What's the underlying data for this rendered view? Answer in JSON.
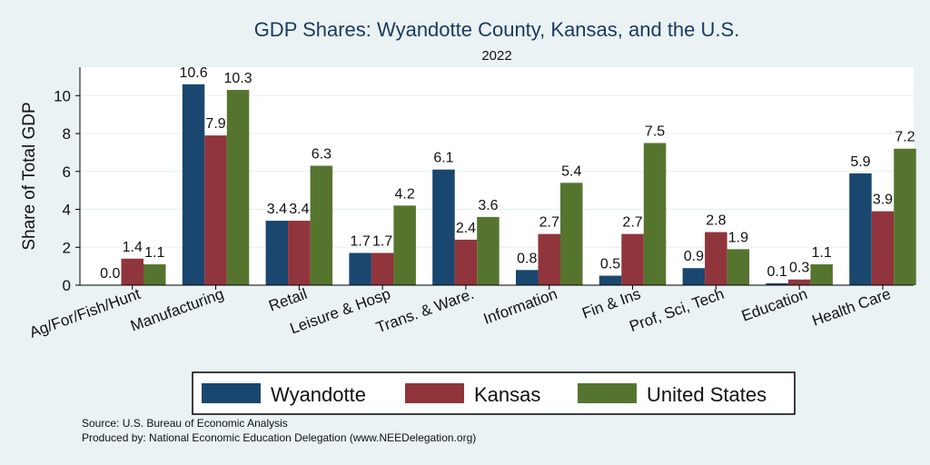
{
  "chart_data": {
    "type": "bar",
    "title": "GDP Shares: Wyandotte County, Kansas, and the U.S.",
    "subtitle": "2022",
    "ylabel": "Share of Total GDP",
    "xlabel": "",
    "ylim": [
      0,
      11.5
    ],
    "yticks": [
      0,
      2,
      4,
      6,
      8,
      10
    ],
    "grid": true,
    "legend_position": "bottom",
    "categories": [
      "Ag/For/Fish/Hunt",
      "Manufacturing",
      "Retail",
      "Leisure & Hosp",
      "Trans. & Ware.",
      "Information",
      "Fin & Ins",
      "Prof, Sci, Tech",
      "Education",
      "Health Care"
    ],
    "series": [
      {
        "name": "Wyandotte",
        "color": "#1a476f",
        "values": [
          0.0,
          10.6,
          3.4,
          1.7,
          6.1,
          0.8,
          0.5,
          0.9,
          0.1,
          5.9
        ]
      },
      {
        "name": "Kansas",
        "color": "#90353b",
        "values": [
          1.4,
          7.9,
          3.4,
          1.7,
          2.4,
          2.7,
          2.7,
          2.8,
          0.3,
          3.9
        ]
      },
      {
        "name": "United States",
        "color": "#55752f",
        "values": [
          1.1,
          10.3,
          6.3,
          4.2,
          3.6,
          5.4,
          7.5,
          1.9,
          1.1,
          7.2
        ]
      }
    ],
    "notes": [
      "Source: U.S. Bureau of Economic Analysis",
      "Produced by: National Economic Education Delegation (www.NEEDelegation.org)"
    ]
  }
}
